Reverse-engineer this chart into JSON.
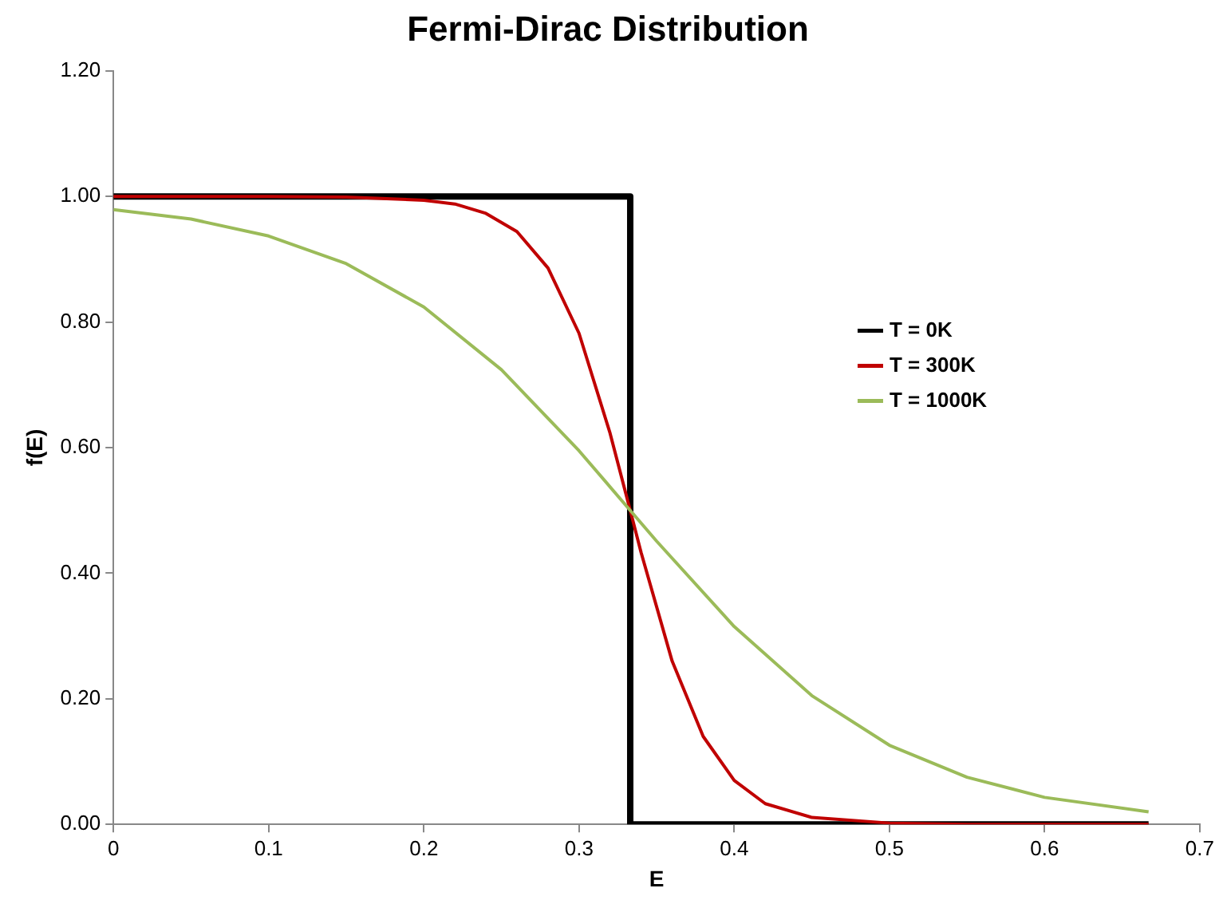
{
  "chart_data": {
    "type": "line",
    "title": "Fermi-Dirac Distribution",
    "xlabel": "E",
    "ylabel": "f(E)",
    "xlim": [
      0,
      0.7
    ],
    "xticks": [
      0,
      0.1,
      0.2,
      0.3,
      0.4,
      0.5,
      0.6,
      0.7
    ],
    "ylim": [
      0,
      1.2
    ],
    "yticks": [
      {
        "value": 0,
        "label": "0.00"
      },
      {
        "value": 0.2,
        "label": "0.20"
      },
      {
        "value": 0.4,
        "label": "0.40"
      },
      {
        "value": 0.6,
        "label": "0.60"
      },
      {
        "value": 0.8,
        "label": "0.80"
      },
      {
        "value": 1,
        "label": "1.00"
      },
      {
        "value": 1.2,
        "label": "1.20"
      }
    ],
    "grid": false,
    "legend": "right",
    "marker": "none",
    "line_style": "solid",
    "series": [
      {
        "name": "T = 0K",
        "color": "#000000",
        "x": [
          0,
          0.333,
          0.333,
          0.667
        ],
        "values": [
          1,
          1,
          0,
          0
        ]
      },
      {
        "name": "T = 300K",
        "color": "#c00000",
        "x": [
          0,
          0.1,
          0.15,
          0.2,
          0.22,
          0.24,
          0.26,
          0.28,
          0.3,
          0.32,
          0.333,
          0.34,
          0.36,
          0.38,
          0.4,
          0.42,
          0.45,
          0.5,
          0.55,
          0.667
        ],
        "values": [
          1,
          1,
          0.999,
          0.994,
          0.988,
          0.973,
          0.944,
          0.886,
          0.782,
          0.623,
          0.5,
          0.433,
          0.26,
          0.14,
          0.07,
          0.033,
          0.011,
          0.002,
          0,
          0
        ]
      },
      {
        "name": "T = 1000K",
        "color": "#9bbb59",
        "x": [
          0,
          0.05,
          0.1,
          0.15,
          0.2,
          0.25,
          0.3,
          0.333,
          0.35,
          0.4,
          0.45,
          0.5,
          0.55,
          0.6,
          0.667
        ],
        "values": [
          0.979,
          0.964,
          0.937,
          0.893,
          0.824,
          0.724,
          0.595,
          0.5,
          0.451,
          0.315,
          0.205,
          0.126,
          0.075,
          0.043,
          0.02
        ]
      }
    ]
  }
}
